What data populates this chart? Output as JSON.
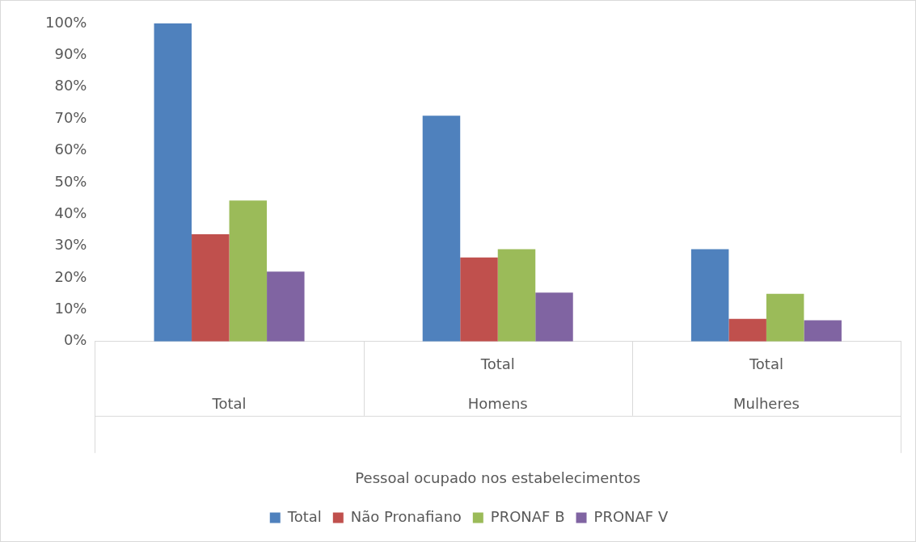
{
  "chart_data": {
    "type": "bar",
    "categories": [
      "Total",
      "Homens",
      "Mulheres"
    ],
    "series": [
      {
        "name": "Total",
        "color": "#4f81bd",
        "values": [
          100,
          71.0,
          29.0
        ]
      },
      {
        "name": "Não Pronafiano",
        "color": "#c0504d",
        "values": [
          33.7,
          26.4,
          7.1
        ]
      },
      {
        "name": "PRONAF B",
        "color": "#9bbb59",
        "values": [
          44.3,
          29.0,
          15.0
        ]
      },
      {
        "name": "PRONAF V",
        "color": "#8064a2",
        "values": [
          22.0,
          15.4,
          6.7
        ]
      }
    ],
    "xlabel": "Pessoal ocupado nos estabelecimentos",
    "annotations": [
      "Total",
      "Total"
    ],
    "ylim": [
      0,
      100
    ],
    "yticks": [
      {
        "value": 0,
        "label": "0%"
      },
      {
        "value": 10,
        "label": "10%"
      },
      {
        "value": 20,
        "label": "20%"
      },
      {
        "value": 30,
        "label": "30%"
      },
      {
        "value": 40,
        "label": "40%"
      },
      {
        "value": 50,
        "label": "50%"
      },
      {
        "value": 60,
        "label": "60%"
      },
      {
        "value": 70,
        "label": "70%"
      },
      {
        "value": 80,
        "label": "80%"
      },
      {
        "value": 90,
        "label": "90%"
      },
      {
        "value": 100,
        "label": "100%"
      }
    ],
    "grid": false,
    "legend": "bottom"
  }
}
